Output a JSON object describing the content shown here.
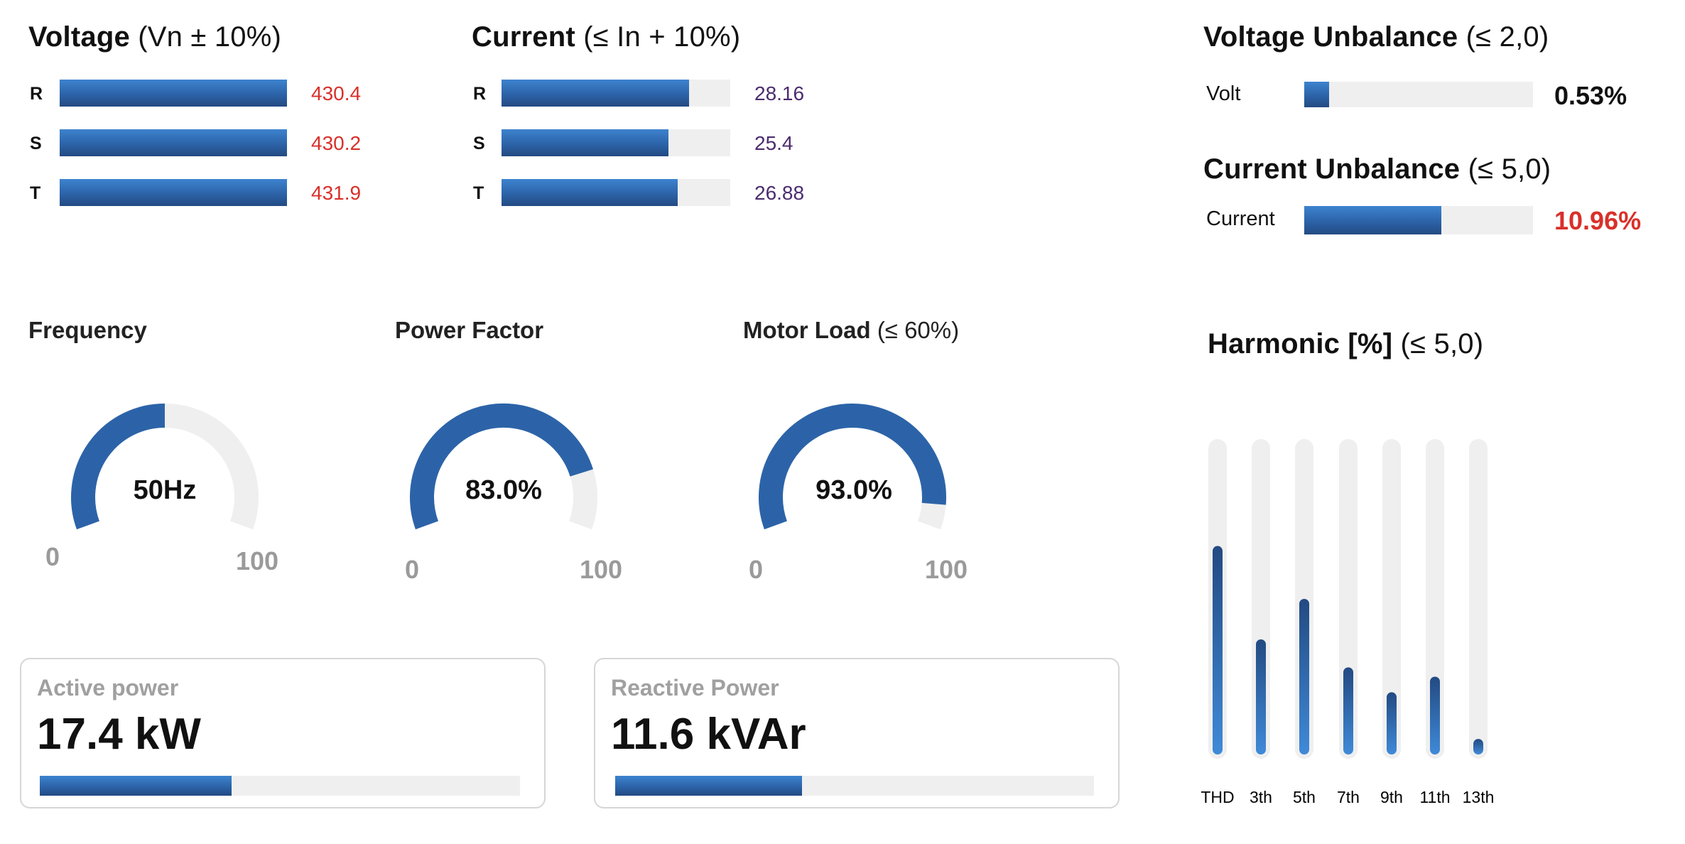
{
  "voltage": {
    "title": "Voltage",
    "limit": "(Vn ± 10%)",
    "phases": [
      {
        "label": "R",
        "value": "430.4",
        "fill": 1.0
      },
      {
        "label": "S",
        "value": "430.2",
        "fill": 1.0
      },
      {
        "label": "T",
        "value": "431.9",
        "fill": 1.0
      }
    ]
  },
  "current": {
    "title": "Current",
    "limit": "(≤ In + 10%)",
    "phases": [
      {
        "label": "R",
        "value": "28.16",
        "fill": 0.82
      },
      {
        "label": "S",
        "value": "25.4",
        "fill": 0.73
      },
      {
        "label": "T",
        "value": "26.88",
        "fill": 0.77
      }
    ]
  },
  "voltage_unbalance": {
    "title": "Voltage Unbalance",
    "limit": "(≤ 2,0)",
    "label": "Volt",
    "value": "0.53%",
    "fill": 0.11
  },
  "current_unbalance": {
    "title": "Current Unbalance",
    "limit": "(≤ 5,0)",
    "label": "Current",
    "value": "10.96%",
    "fill": 0.6
  },
  "gauges": [
    {
      "title": "Frequency",
      "limit": "",
      "value_text": "50Hz",
      "value": 50,
      "min": "0",
      "max": "100"
    },
    {
      "title": "Power Factor",
      "limit": "",
      "value_text": "83.0%",
      "value": 83,
      "min": "0",
      "max": "100"
    },
    {
      "title": "Motor Load",
      "limit": "(≤ 60%)",
      "value_text": "93.0%",
      "value": 93,
      "min": "0",
      "max": "100"
    }
  ],
  "active_power": {
    "title": "Active power",
    "value": "17.4 kW",
    "fill": 0.4
  },
  "reactive_power": {
    "title": "Reactive Power",
    "value": "11.6 kVAr",
    "fill": 0.39
  },
  "harmonic": {
    "title": "Harmonic [%]",
    "limit": "(≤ 5,0)",
    "bars": [
      {
        "label": "THD",
        "level": 0.67
      },
      {
        "label": "3th",
        "level": 0.37
      },
      {
        "label": "5th",
        "level": 0.5
      },
      {
        "label": "7th",
        "level": 0.28
      },
      {
        "label": "9th",
        "level": 0.2
      },
      {
        "label": "11th",
        "level": 0.25
      },
      {
        "label": "13th",
        "level": 0.05
      }
    ]
  },
  "colors": {
    "accent": "#2c63a8",
    "track": "#efefef",
    "alert": "#d9302a",
    "value": "#4b2c6e"
  }
}
